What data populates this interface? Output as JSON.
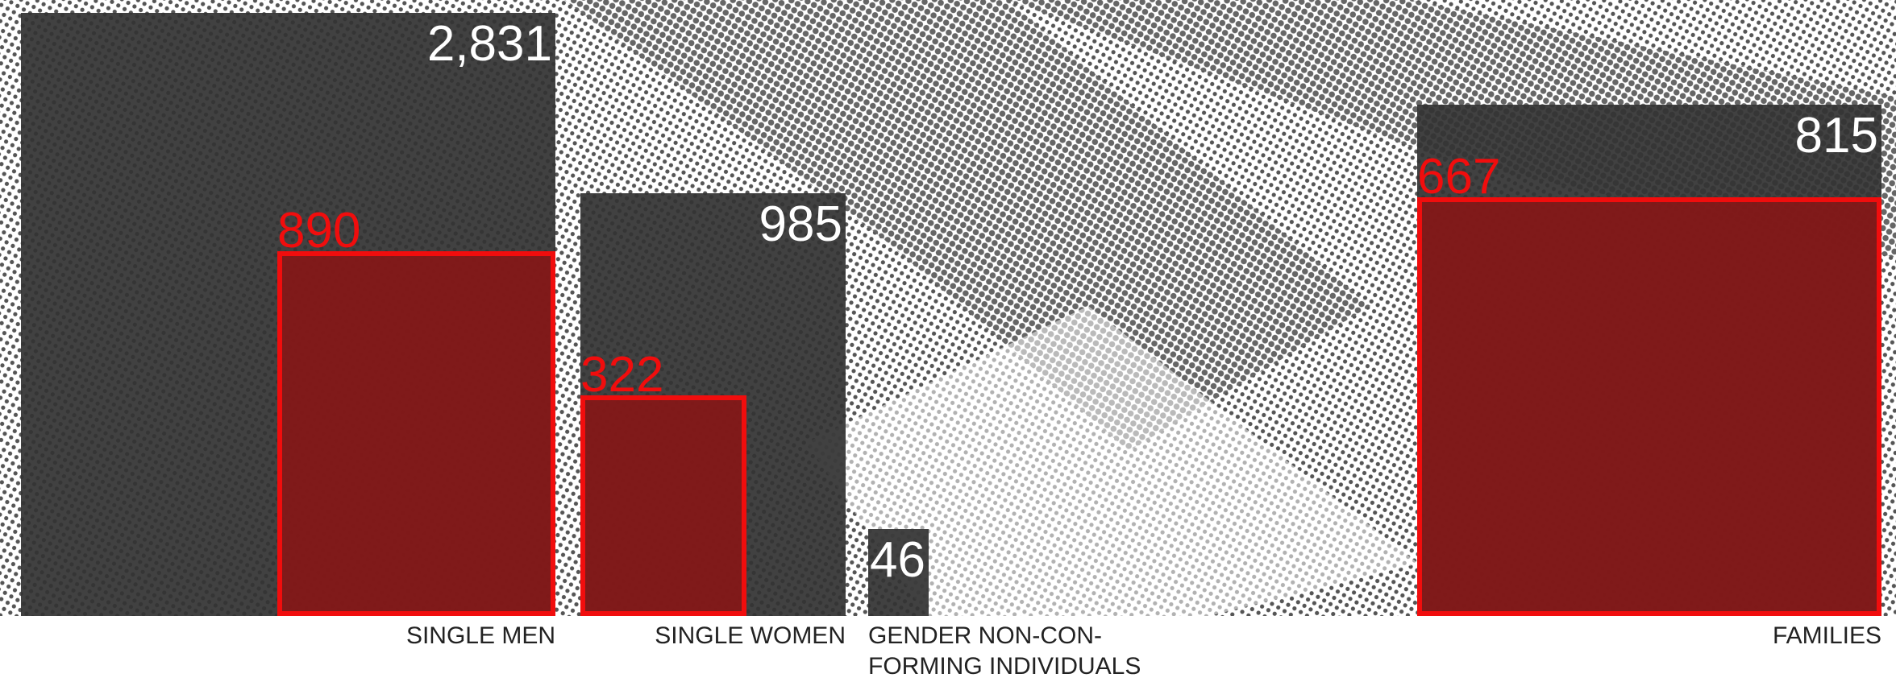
{
  "chart_data": {
    "type": "area-bar",
    "categories": [
      "SINGLE  MEN",
      "SINGLE  WOMEN",
      "GENDER NON-CON-\nFORMING INDIVIDUALS",
      "FAMILIES"
    ],
    "values": [
      2831,
      985,
      46,
      815
    ],
    "value_labels": [
      "2,831",
      "985",
      "46",
      "815"
    ],
    "color": "#333333",
    "subset_values": [
      890,
      322,
      null,
      667
    ],
    "subset_color": "#f10d0d"
  }
}
